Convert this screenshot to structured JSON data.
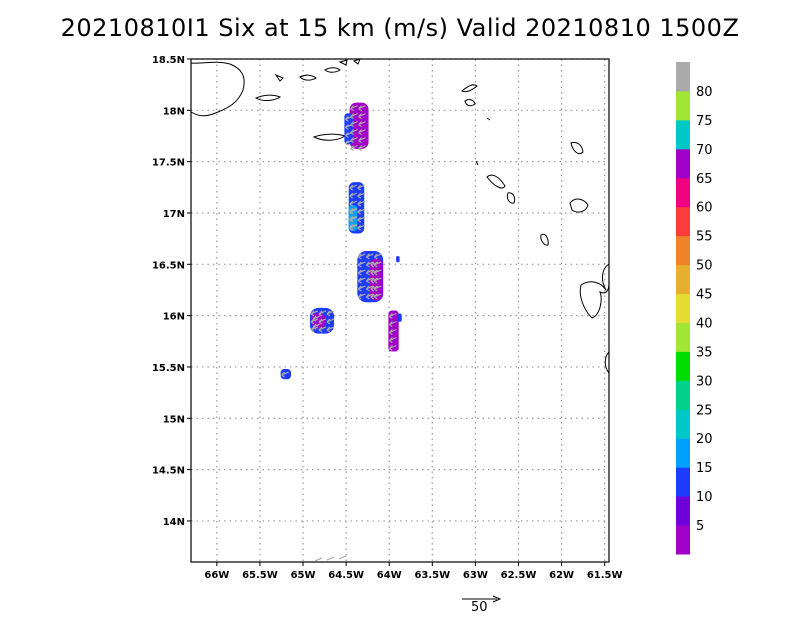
{
  "title": "20210810I1 Six at 15 km (m/s) Valid 20210810 1500Z",
  "map": {
    "lon_range": [
      -66.3,
      -61.45
    ],
    "lat_range": [
      13.6,
      18.5
    ],
    "lon_ticks": [
      -66,
      -65.5,
      -65,
      -64.5,
      -64,
      -63.5,
      -63,
      -62.5,
      -62,
      -61.5
    ],
    "lon_tick_labels": [
      "66W",
      "65.5W",
      "65W",
      "64.5W",
      "64W",
      "63.5W",
      "63W",
      "62.5W",
      "62W",
      "61.5W"
    ],
    "lat_ticks": [
      18.5,
      18,
      17.5,
      17,
      16.5,
      16,
      15.5,
      15,
      14.5,
      14
    ],
    "lat_tick_labels": [
      "18.5N",
      "18N",
      "17.5N",
      "17N",
      "16.5N",
      "16N",
      "15.5N",
      "15N",
      "14.5N",
      "14N"
    ],
    "grid": true
  },
  "colorbar": {
    "labels": [
      "5",
      "10",
      "15",
      "20",
      "25",
      "30",
      "35",
      "40",
      "45",
      "50",
      "55",
      "60",
      "65",
      "70",
      "75",
      "80"
    ],
    "colors": [
      "#a000c8",
      "#6e00dc",
      "#1e3cff",
      "#00a0ff",
      "#00c8c8",
      "#00d28c",
      "#00dc00",
      "#a0e632",
      "#e6dc32",
      "#e6af2d",
      "#f08228",
      "#fa3c3c",
      "#f00082",
      "#a000c8",
      "#00c8c8",
      "#a0e632",
      "#aaaaaa"
    ]
  },
  "scale_arrow": {
    "label": "50"
  },
  "wind_cells": [
    {
      "lon": -64.35,
      "lat": 17.85,
      "w": 0.22,
      "h": 0.45,
      "color": "#a000c8"
    },
    {
      "lon": -64.47,
      "lat": 17.82,
      "w": 0.1,
      "h": 0.3,
      "color": "#1e3cff"
    },
    {
      "lon": -64.38,
      "lat": 17.05,
      "w": 0.18,
      "h": 0.5,
      "color": "#1e3cff"
    },
    {
      "lon": -64.42,
      "lat": 16.95,
      "w": 0.1,
      "h": 0.25,
      "color": "#00a0ff"
    },
    {
      "lon": -64.22,
      "lat": 16.38,
      "w": 0.3,
      "h": 0.5,
      "color": "#1e3cff"
    },
    {
      "lon": -64.15,
      "lat": 16.35,
      "w": 0.15,
      "h": 0.4,
      "color": "#a000c8"
    },
    {
      "lon": -64.78,
      "lat": 15.95,
      "w": 0.28,
      "h": 0.25,
      "color": "#1e3cff"
    },
    {
      "lon": -64.82,
      "lat": 15.95,
      "w": 0.15,
      "h": 0.15,
      "color": "#a000c8"
    },
    {
      "lon": -63.95,
      "lat": 15.85,
      "w": 0.12,
      "h": 0.4,
      "color": "#a000c8"
    },
    {
      "lon": -65.2,
      "lat": 15.43,
      "w": 0.12,
      "h": 0.1,
      "color": "#1e3cff"
    },
    {
      "lon": -63.9,
      "lat": 16.55,
      "w": 0.04,
      "h": 0.06,
      "color": "#1e3cff"
    },
    {
      "lon": -63.88,
      "lat": 15.98,
      "w": 0.05,
      "h": 0.08,
      "color": "#1e3cff"
    }
  ]
}
